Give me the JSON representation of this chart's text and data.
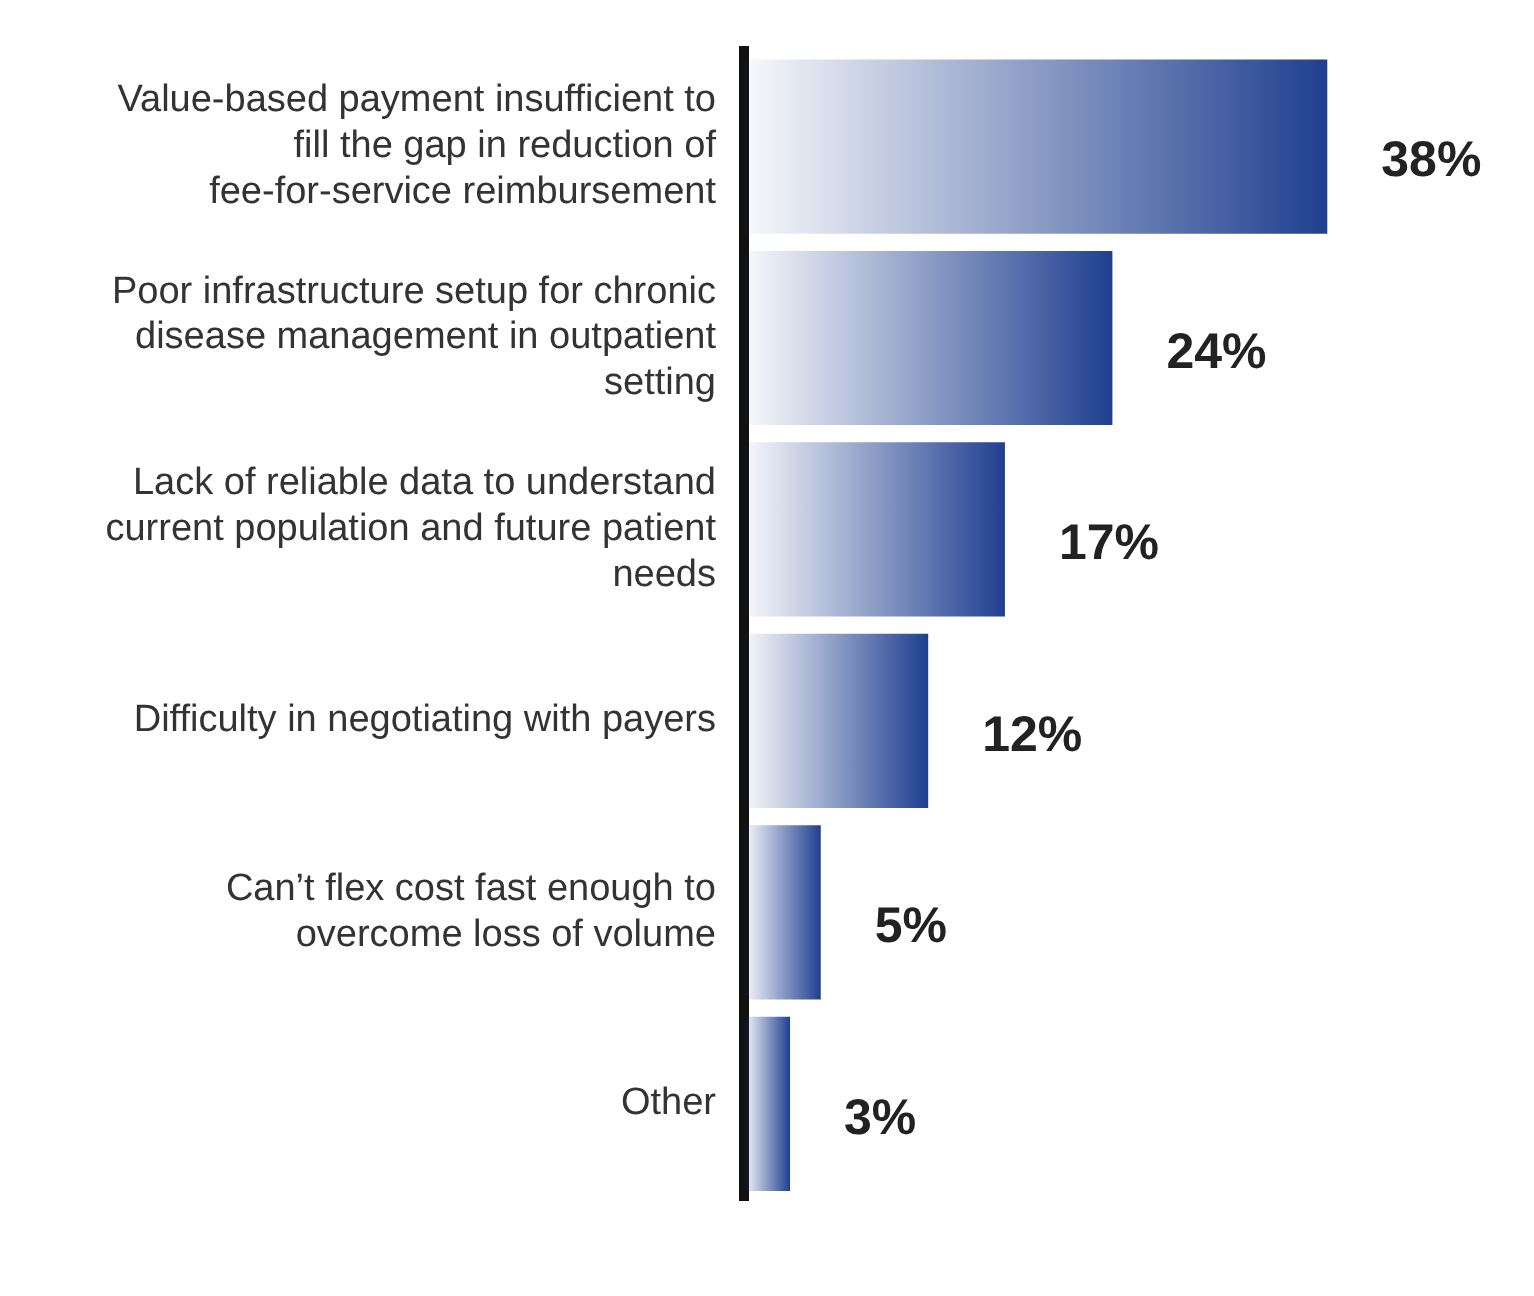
{
  "chart_data": {
    "type": "bar",
    "orientation": "horizontal",
    "categories": [
      "Value-based payment insufficient to fill the gap in reduction of fee-for-service reimbursement",
      "Poor infrastructure setup for chronic disease management in outpatient setting",
      "Lack of reliable data to understand current population and future patient needs",
      "Difficulty in negotiating with payers",
      "Can’t flex cost fast enough to overcome loss of volume",
      "Other"
    ],
    "values": [
      38,
      24,
      17,
      12,
      5,
      3
    ],
    "value_labels": [
      "38%",
      "24%",
      "17%",
      "12%",
      "5%",
      "3%"
    ],
    "color": "#1f3f8f",
    "legend": false,
    "tick_labels": "y"
  }
}
